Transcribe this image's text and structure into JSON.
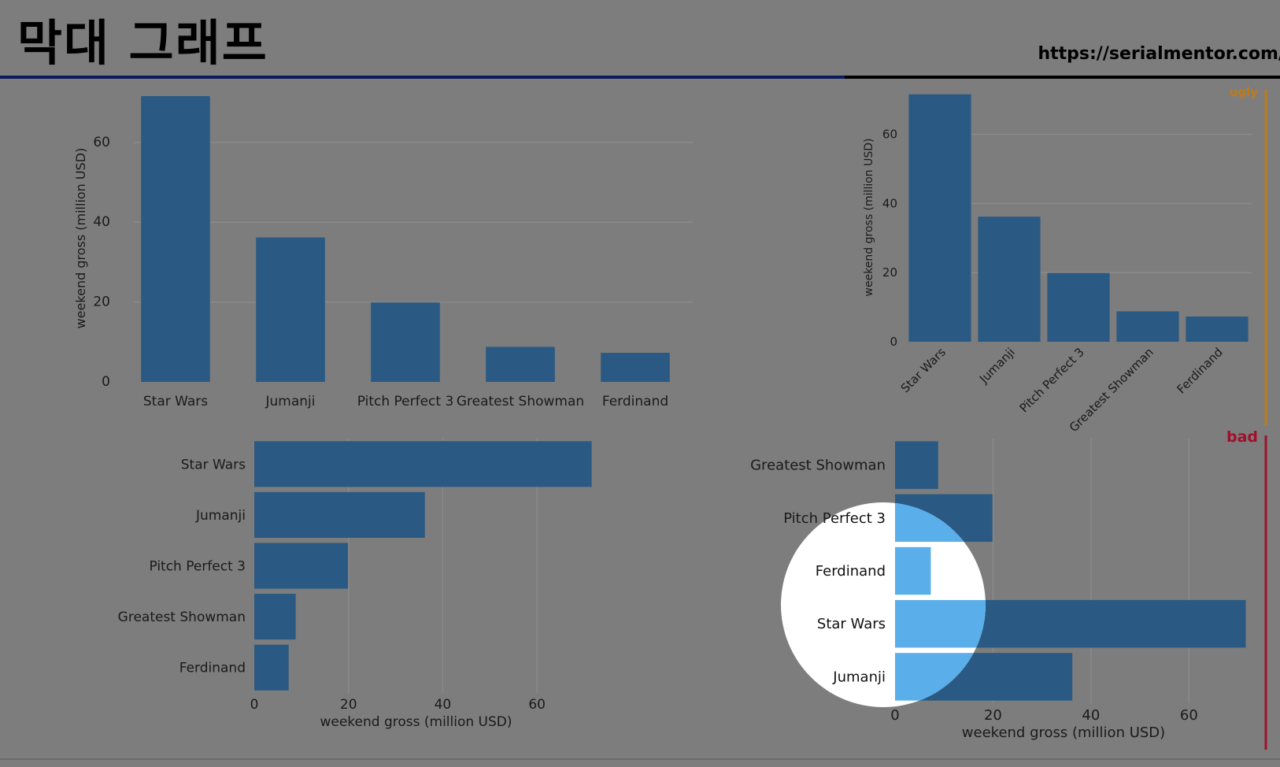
{
  "slide": {
    "title": "막대 그래프",
    "url": "https://serialmentor.com/"
  },
  "colors": {
    "background": "#7d7d7d",
    "bar": "#2a5a83",
    "bar_highlight": "#5aaeea",
    "grid": "#8a8a8a",
    "text": "#1a1a1a",
    "ugly": "#c07a1a",
    "bad": "#a0102a"
  },
  "chart_data": [
    {
      "id": "top-left",
      "type": "bar",
      "orientation": "vertical",
      "categories": [
        "Star Wars",
        "Jumanji",
        "Pitch Perfect 3",
        "Greatest Showman",
        "Ferdinand"
      ],
      "values": [
        71.6,
        36.2,
        19.9,
        8.8,
        7.3
      ],
      "ylabel": "weekend gross (million USD)",
      "xlabel": "",
      "ylim": [
        0,
        72
      ],
      "yticks": [
        "0",
        "20",
        "40",
        "60"
      ],
      "tag": ""
    },
    {
      "id": "top-right",
      "type": "bar",
      "orientation": "vertical",
      "categories": [
        "Star Wars",
        "Jumanji",
        "Pitch Perfect 3",
        "Greatest Showman",
        "Ferdinand"
      ],
      "values": [
        71.6,
        36.2,
        19.9,
        8.8,
        7.3
      ],
      "ylabel": "weekend gross (million USD)",
      "xlabel": "",
      "ylim": [
        0,
        72
      ],
      "yticks": [
        "0",
        "20",
        "40",
        "60"
      ],
      "tag": "ugly"
    },
    {
      "id": "bottom-left",
      "type": "bar",
      "orientation": "horizontal",
      "categories": [
        "Star Wars",
        "Jumanji",
        "Pitch Perfect 3",
        "Greatest Showman",
        "Ferdinand"
      ],
      "values": [
        71.6,
        36.2,
        19.9,
        8.8,
        7.3
      ],
      "xlabel": "weekend gross (million USD)",
      "ylabel": "",
      "xlim": [
        0,
        72
      ],
      "xticks": [
        "0",
        "20",
        "40",
        "60"
      ],
      "tag": ""
    },
    {
      "id": "bottom-right",
      "type": "bar",
      "orientation": "horizontal",
      "categories": [
        "Greatest Showman",
        "Pitch Perfect 3",
        "Ferdinand",
        "Star Wars",
        "Jumanji"
      ],
      "values": [
        8.8,
        19.9,
        7.3,
        71.6,
        36.2
      ],
      "xlabel": "weekend gross (million USD)",
      "ylabel": "",
      "xlim": [
        0,
        72
      ],
      "xticks": [
        "0",
        "20",
        "40",
        "60"
      ],
      "tag": "bad"
    }
  ]
}
